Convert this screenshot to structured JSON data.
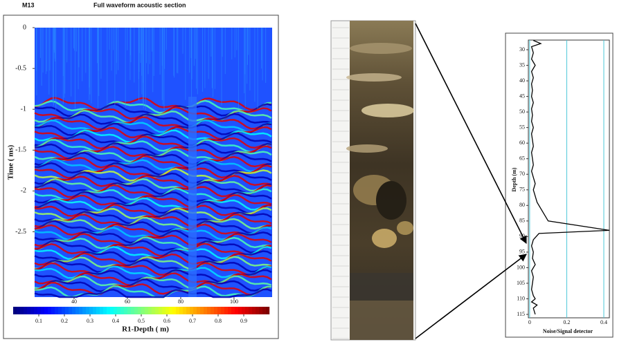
{
  "header": {
    "label": "M13",
    "title": "Full waveform acoustic section"
  },
  "chart_data": [
    {
      "type": "heatmap",
      "xlabel": "R1-Depth ( m)",
      "ylabel": "Time ( ms)",
      "xlim": [
        25.2,
        114.3
      ],
      "xticks": [
        40,
        60,
        80,
        100
      ],
      "ylim": [
        -3.3,
        0
      ],
      "yticks": [
        0,
        -0.5,
        -1,
        -1.5,
        -2,
        -2.5
      ],
      "colorbar": {
        "lim": [
          0,
          1
        ],
        "ticks": [
          0.1,
          0.2,
          0.3,
          0.4,
          0.5,
          0.6,
          0.7,
          0.8,
          0.9
        ]
      }
    },
    {
      "type": "line",
      "xlabel": "Noise/Signal detector",
      "ylabel": "Depth (m)",
      "xlim": [
        -0.007,
        0.43
      ],
      "xticks": [
        0,
        0.2,
        0.4
      ],
      "ylim": [
        116.1,
        26.9
      ],
      "yticks": [
        30,
        35,
        40,
        45,
        50,
        55,
        60,
        65,
        70,
        75,
        80,
        85,
        90,
        95,
        100,
        105,
        110,
        115
      ],
      "grid": true,
      "color": "#000000",
      "series": [
        {
          "x": [
            0.02,
            0.06,
            0.01,
            0.02,
            0.01,
            0.03,
            0.01,
            0.02,
            0.01,
            0.015,
            0.01,
            0.02,
            0.01,
            0.015,
            0.01,
            0.02,
            0.01,
            0.015,
            0.02,
            0.01,
            0.015,
            0.02,
            0.01,
            0.02,
            0.03,
            0.02,
            0.03,
            0.04,
            0.1,
            0.43,
            0.05,
            0.02,
            0.01,
            0.02,
            0.015,
            0.03,
            0.01,
            0.02,
            0.015,
            0.01,
            0.02,
            0.03,
            0.01,
            0.04,
            0.02,
            0.03
          ],
          "y": [
            27,
            28,
            29,
            31,
            33,
            35,
            37,
            39,
            41,
            43,
            45,
            47,
            49,
            51,
            53,
            55,
            57,
            59,
            61,
            63,
            65,
            67,
            69,
            71,
            73,
            75,
            77,
            79,
            85,
            88,
            89,
            91,
            93,
            95,
            97,
            99,
            101,
            103,
            105,
            107,
            109,
            110,
            111,
            112,
            113,
            115
          ]
        }
      ]
    }
  ]
}
